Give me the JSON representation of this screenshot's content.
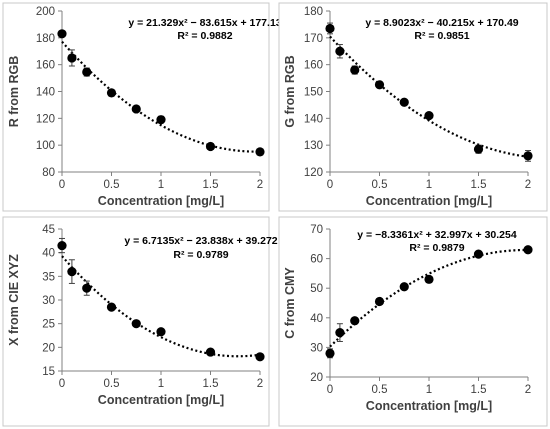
{
  "chart_data": [
    {
      "type": "scatter",
      "ylabel": "R from RGB",
      "xlabel": "Concentration  [mg/L]",
      "xlim": [
        0,
        2
      ],
      "ylim": [
        80,
        200
      ],
      "xticks": [
        0,
        0.5,
        1,
        1.5,
        2
      ],
      "yticks": [
        80,
        100,
        120,
        140,
        160,
        180,
        200
      ],
      "tick_labels_x": [
        "0",
        "0.5",
        "1",
        "1.5",
        "2"
      ],
      "tick_labels_y": [
        "80",
        "100",
        "120",
        "140",
        "160",
        "180",
        "200"
      ],
      "equation": "y = 21.329x² − 83.615x + 177.13",
      "r_squared": "R² = 0.9882",
      "fit": {
        "a": 21.329,
        "b": -83.615,
        "c": 177.13
      },
      "x": [
        0,
        0.1,
        0.25,
        0.5,
        0.75,
        1,
        1.5,
        2
      ],
      "y": [
        183,
        165,
        154.5,
        139,
        127,
        119,
        99,
        95
      ],
      "err": [
        2,
        6,
        3,
        1,
        1.5,
        2.5,
        1,
        2
      ],
      "grid": false
    },
    {
      "type": "scatter",
      "ylabel": "G from RGB",
      "xlabel": "Concentration  [mg/L]",
      "xlim": [
        0,
        2
      ],
      "ylim": [
        120,
        180
      ],
      "xticks": [
        0,
        0.5,
        1,
        1.5,
        2
      ],
      "yticks": [
        120,
        130,
        140,
        150,
        160,
        170,
        180
      ],
      "tick_labels_x": [
        "0",
        "0.5",
        "1",
        "1.5",
        "2"
      ],
      "tick_labels_y": [
        "120",
        "130",
        "140",
        "150",
        "160",
        "170",
        "180"
      ],
      "equation": "y = 8.9023x² − 40.215x + 170.49",
      "r_squared": "R² = 0.9851",
      "fit": {
        "a": 8.9023,
        "b": -40.215,
        "c": 170.49
      },
      "x": [
        0,
        0.1,
        0.25,
        0.5,
        0.75,
        1,
        1.5,
        2
      ],
      "y": [
        173.5,
        165,
        158,
        152.5,
        146,
        141,
        128.5,
        126
      ],
      "err": [
        2,
        2.5,
        1.5,
        0.5,
        0.5,
        0.5,
        1.5,
        2
      ],
      "grid": false
    },
    {
      "type": "scatter",
      "ylabel": "X from CIE XYZ",
      "xlabel": "Concentration  [mg/L]",
      "xlim": [
        0,
        2
      ],
      "ylim": [
        15,
        45
      ],
      "xticks": [
        0,
        0.5,
        1,
        1.5,
        2
      ],
      "yticks": [
        15,
        20,
        25,
        30,
        35,
        40,
        45
      ],
      "tick_labels_x": [
        "0",
        "0.5",
        "1",
        "1.5",
        "2"
      ],
      "tick_labels_y": [
        "15",
        "20",
        "25",
        "30",
        "35",
        "40",
        "45"
      ],
      "equation": "y = 6.7135x² − 23.838x + 39.272",
      "r_squared": "R² = 0.9789",
      "fit": {
        "a": 6.7135,
        "b": -23.838,
        "c": 39.272
      },
      "x": [
        0,
        0.1,
        0.25,
        0.5,
        0.75,
        1,
        1.5,
        2
      ],
      "y": [
        41.5,
        36,
        32.5,
        28.5,
        25,
        23.3,
        19,
        18
      ],
      "err": [
        1.5,
        2.5,
        1.5,
        0.5,
        0.5,
        0.5,
        0.3,
        0.5
      ],
      "grid": false
    },
    {
      "type": "scatter",
      "ylabel": "C from CMY",
      "xlabel": "Concentration  [mg/L]",
      "xlim": [
        0,
        2
      ],
      "ylim": [
        20,
        70
      ],
      "xticks": [
        0,
        0.5,
        1,
        1.5,
        2
      ],
      "yticks": [
        20,
        30,
        40,
        50,
        60,
        70
      ],
      "tick_labels_x": [
        "0",
        "0.5",
        "1",
        "1.5",
        "2"
      ],
      "tick_labels_y": [
        "20",
        "30",
        "40",
        "50",
        "60",
        "70"
      ],
      "equation": "y = −8.3361x² + 32.997x + 30.254",
      "r_squared": "R² = 0.9879",
      "fit": {
        "a": -8.3361,
        "b": 32.997,
        "c": 30.254
      },
      "x": [
        0,
        0.1,
        0.25,
        0.5,
        0.75,
        1,
        1.5,
        2
      ],
      "y": [
        28,
        35,
        39,
        45.5,
        50.5,
        53,
        61.5,
        63
      ],
      "err": [
        1.5,
        3,
        1,
        0.5,
        0.5,
        1,
        0.5,
        0.5
      ],
      "grid": false
    }
  ],
  "colors": {
    "marker": "#000000",
    "fit_line": "#000000",
    "axis": "#808080",
    "text": "#404040",
    "panel_border": "#c8c8c8"
  }
}
